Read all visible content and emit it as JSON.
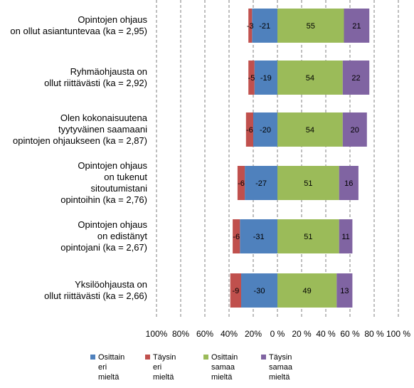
{
  "chart_data": {
    "type": "bar",
    "orientation": "horizontal",
    "stacked": "diverging",
    "categories": [
      "Opintojen ohjaus\non ollut asiantuntevaa (ka = 2,95)",
      "Ryhmäohjausta on\nollut riittävästi (ka = 2,92)",
      "Olen kokonaisuutena\ntyytyväinen saamaani\nopintojen ohjaukseen (ka = 2,87)",
      "Opintojen ohjaus\non tukenut\nsitoutumistani\nopintoihin (ka = 2,76)",
      "Opintojen ohjaus\non edistänyt\nopintojani (ka = 2,67)",
      "Yksilöohjausta on\nollut riittävästi (ka = 2,66)"
    ],
    "series": [
      {
        "name": "Täysin\neri mieltä",
        "color": "#c0504d",
        "values": [
          -3,
          -5,
          -6,
          -6,
          -6,
          -9
        ],
        "labels": [
          "-3",
          "-5",
          "-6",
          "-6",
          "-6",
          "-9"
        ]
      },
      {
        "name": "Osittain\neri mieltä",
        "color": "#4f81bd",
        "values": [
          -21,
          -19,
          -20,
          -27,
          -31,
          -30
        ],
        "labels": [
          "-21",
          "-19",
          "-20",
          "-27",
          "-31",
          "-30"
        ]
      },
      {
        "name": "Osittain\nsamaa mieltä",
        "color": "#9bbb59",
        "values": [
          55,
          54,
          54,
          51,
          51,
          49
        ],
        "labels": [
          "55",
          "54",
          "54",
          "51",
          "51",
          "49"
        ]
      },
      {
        "name": "Täysin\nsamaa mieltä",
        "color": "#8064a2",
        "values": [
          21,
          22,
          20,
          16,
          11,
          13
        ],
        "labels": [
          "21",
          "22",
          "20",
          "16",
          "11",
          "13"
        ]
      }
    ],
    "xlim": [
      -100,
      100
    ],
    "xticks": [
      -100,
      -80,
      -60,
      -40,
      -20,
      0,
      20,
      40,
      60,
      80,
      100
    ],
    "xtick_labels": [
      "100%",
      "80%",
      "60%",
      "40%",
      "20%",
      "0 %",
      "20 %",
      "40 %",
      "60 %",
      "80 %",
      "100 %"
    ],
    "grid": "vertical-dashed",
    "legend_position": "bottom",
    "legend_order": [
      "Osittain\neri mieltä",
      "Täysin\neri mieltä",
      "Osittain\nsamaa mieltä",
      "Täysin\nsamaa mieltä"
    ]
  }
}
